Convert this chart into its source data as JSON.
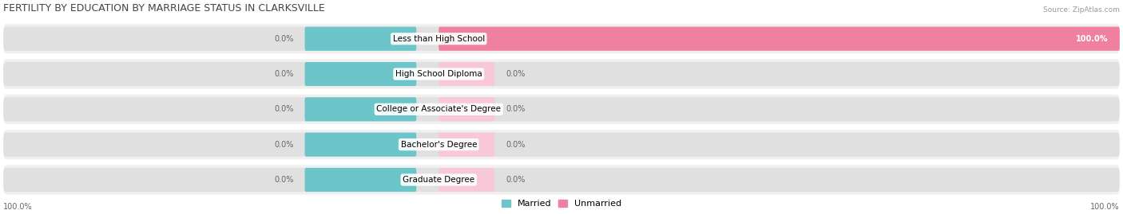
{
  "title": "FERTILITY BY EDUCATION BY MARRIAGE STATUS IN CLARKSVILLE",
  "source": "Source: ZipAtlas.com",
  "categories": [
    "Less than High School",
    "High School Diploma",
    "College or Associate's Degree",
    "Bachelor's Degree",
    "Graduate Degree"
  ],
  "married_values": [
    0.0,
    0.0,
    0.0,
    0.0,
    0.0
  ],
  "unmarried_values": [
    100.0,
    0.0,
    0.0,
    0.0,
    0.0
  ],
  "married_color": "#6cc5c8",
  "unmarried_color": "#f080a0",
  "bar_bg_color": "#e0e0e0",
  "row_bg_color": "#f0f0f0",
  "title_fontsize": 9,
  "label_fontsize": 7.5,
  "value_fontsize": 7,
  "legend_fontsize": 8,
  "fig_width": 14.06,
  "fig_height": 2.69
}
